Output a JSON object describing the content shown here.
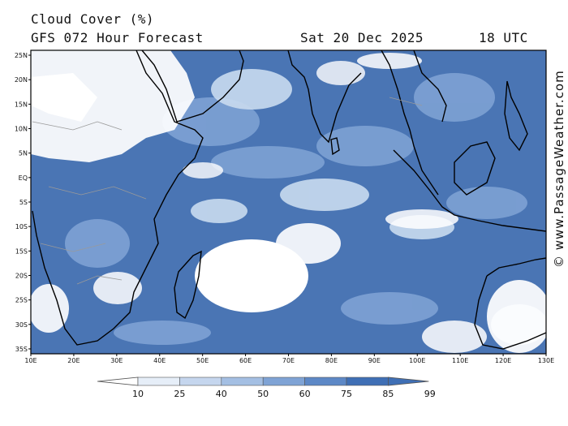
{
  "header": {
    "title": "Cloud Cover (%)",
    "subtitle": "GFS 072 Hour Forecast",
    "date": "Sat 20 Dec 2025",
    "time": "18 UTC"
  },
  "map": {
    "lat_labels": [
      "25N",
      "20N",
      "15N",
      "10N",
      "5N",
      "EQ",
      "5S",
      "10S",
      "15S",
      "20S",
      "25S",
      "30S",
      "35S"
    ],
    "lon_labels": [
      "10E",
      "20E",
      "30E",
      "40E",
      "50E",
      "60E",
      "70E",
      "80E",
      "90E",
      "100E",
      "110E",
      "120E",
      "130E"
    ],
    "lon_range": [
      10,
      130
    ],
    "lat_range": [
      -36,
      26
    ]
  },
  "colorbar": {
    "levels": [
      "10",
      "25",
      "40",
      "50",
      "60",
      "75",
      "85",
      "99"
    ],
    "colors": [
      "#ffffff",
      "#e6eef8",
      "#c5d6ee",
      "#a4bfe3",
      "#7fa3d5",
      "#5d88c6",
      "#3f6fb5"
    ]
  },
  "credit": "© www.PassageWeather.com",
  "palette": {
    "base": "#4a75b4",
    "mid": "#7ea2d4",
    "light": "#c9dbef",
    "white": "#ffffff",
    "coast": "#000000",
    "border": "#9a9a9a"
  }
}
